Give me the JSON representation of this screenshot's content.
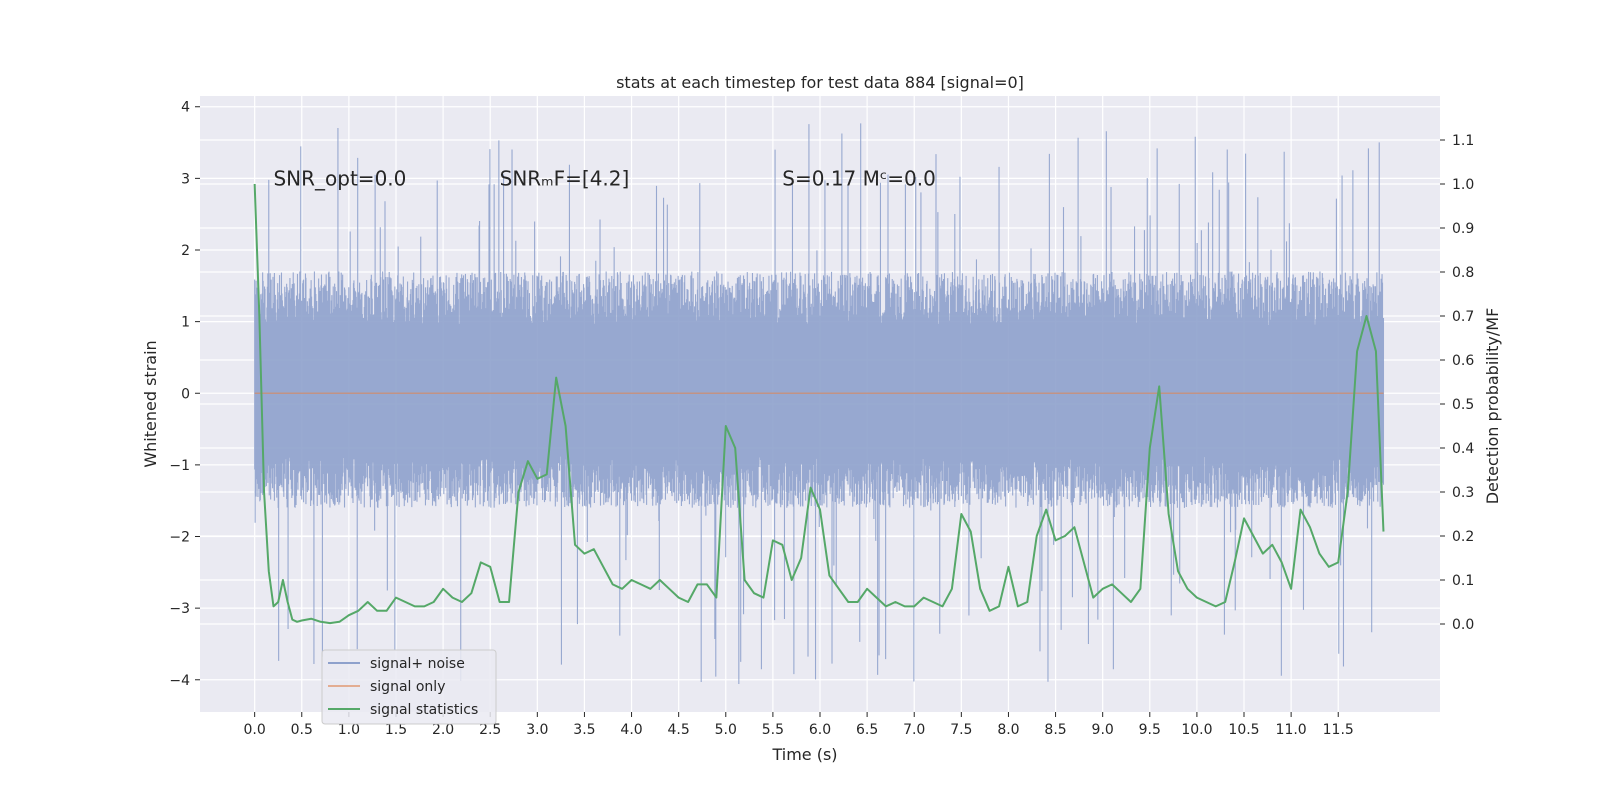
{
  "chart_data": {
    "type": "line",
    "title": "stats at each timestep for test data 884 [signal=0]",
    "xlabel": "Time (s)",
    "ylabel": "Whitened strain",
    "ylabel_right": "Detection probability/MF",
    "xlim": [
      -0.58,
      12.58
    ],
    "ylim": [
      -4.45,
      4.15
    ],
    "ylim_right": [
      -0.2,
      1.2
    ],
    "x_ticks": [
      0.0,
      0.5,
      1.0,
      1.5,
      2.0,
      2.5,
      3.0,
      3.5,
      4.0,
      4.5,
      5.0,
      5.5,
      6.0,
      6.5,
      7.0,
      7.5,
      8.0,
      8.5,
      9.0,
      9.5,
      10.0,
      10.5,
      11.0,
      11.5
    ],
    "x_tick_labels": [
      "0.0",
      "0.5",
      "1.0",
      "1.5",
      "2.0",
      "2.5",
      "3.0",
      "3.5",
      "4.0",
      "4.5",
      "5.0",
      "5.5",
      "6.0",
      "6.5",
      "7.0",
      "7.5",
      "8.0",
      "8.5",
      "9.0",
      "9.5",
      "10.0",
      "10.5",
      "11.0",
      "11.5"
    ],
    "y_ticks": [
      -4,
      -3,
      -2,
      -1,
      0,
      1,
      2,
      3,
      4
    ],
    "y_tick_labels": [
      "−4",
      "−3",
      "−2",
      "−1",
      "0",
      "1",
      "2",
      "3",
      "4"
    ],
    "y_ticks_right": [
      0.0,
      0.1,
      0.2,
      0.3,
      0.4,
      0.5,
      0.6,
      0.7,
      0.8,
      0.9,
      1.0,
      1.1
    ],
    "y_tick_labels_right": [
      "0.0",
      "0.1",
      "0.2",
      "0.3",
      "0.4",
      "0.5",
      "0.6",
      "0.7",
      "0.8",
      "0.9",
      "1.0",
      "1.1"
    ],
    "grid": true,
    "legend_position": "lower-left",
    "annotations": [
      {
        "text": "SNR_opt=0.0",
        "x": 0.2,
        "y": 3.0
      },
      {
        "text": "SNRₘF=[4.2]",
        "x": 2.6,
        "y": 3.0
      },
      {
        "text": "S=0.17   Mᶜ=0.0",
        "x": 5.6,
        "y": 3.0
      }
    ],
    "series": [
      {
        "name": "signal+ noise",
        "color": "#8ea1cc",
        "kind": "noise",
        "x_range": [
          0.0,
          11.98
        ],
        "envelope_low": -1.6,
        "envelope_high": 1.7,
        "extremes_low": -4.1,
        "extremes_high": 3.8,
        "axis": "left"
      },
      {
        "name": "signal only",
        "color": "#dd8452",
        "kind": "line",
        "x": [
          0.0,
          11.98
        ],
        "y": [
          0.0,
          0.0
        ],
        "axis": "left"
      },
      {
        "name": "signal statistics",
        "color": "#55a868",
        "kind": "line",
        "axis": "right",
        "x": [
          0.0,
          0.05,
          0.1,
          0.15,
          0.2,
          0.25,
          0.3,
          0.35,
          0.4,
          0.45,
          0.5,
          0.6,
          0.7,
          0.8,
          0.9,
          1.0,
          1.1,
          1.2,
          1.3,
          1.4,
          1.5,
          1.6,
          1.7,
          1.8,
          1.9,
          2.0,
          2.1,
          2.2,
          2.3,
          2.4,
          2.5,
          2.6,
          2.7,
          2.8,
          2.9,
          3.0,
          3.1,
          3.2,
          3.3,
          3.4,
          3.5,
          3.6,
          3.7,
          3.8,
          3.9,
          4.0,
          4.1,
          4.2,
          4.3,
          4.4,
          4.5,
          4.6,
          4.7,
          4.8,
          4.9,
          5.0,
          5.1,
          5.2,
          5.3,
          5.4,
          5.5,
          5.6,
          5.7,
          5.8,
          5.9,
          6.0,
          6.1,
          6.2,
          6.3,
          6.4,
          6.5,
          6.6,
          6.7,
          6.8,
          6.9,
          7.0,
          7.1,
          7.2,
          7.3,
          7.4,
          7.5,
          7.6,
          7.7,
          7.8,
          7.9,
          8.0,
          8.1,
          8.2,
          8.3,
          8.4,
          8.5,
          8.6,
          8.7,
          8.8,
          8.9,
          9.0,
          9.1,
          9.2,
          9.3,
          9.4,
          9.5,
          9.6,
          9.7,
          9.8,
          9.9,
          10.0,
          10.1,
          10.2,
          10.3,
          10.4,
          10.5,
          10.6,
          10.7,
          10.8,
          10.9,
          11.0,
          11.1,
          11.2,
          11.3,
          11.4,
          11.5,
          11.6,
          11.7,
          11.8,
          11.9,
          11.98
        ],
        "y": [
          1.0,
          0.7,
          0.3,
          0.12,
          0.04,
          0.05,
          0.1,
          0.05,
          0.01,
          0.005,
          0.008,
          0.012,
          0.005,
          0.002,
          0.005,
          0.02,
          0.03,
          0.05,
          0.03,
          0.03,
          0.06,
          0.05,
          0.04,
          0.04,
          0.05,
          0.08,
          0.06,
          0.05,
          0.07,
          0.14,
          0.13,
          0.05,
          0.05,
          0.3,
          0.37,
          0.33,
          0.34,
          0.56,
          0.45,
          0.18,
          0.16,
          0.17,
          0.13,
          0.09,
          0.08,
          0.1,
          0.09,
          0.08,
          0.1,
          0.08,
          0.06,
          0.05,
          0.09,
          0.09,
          0.06,
          0.45,
          0.4,
          0.1,
          0.07,
          0.06,
          0.19,
          0.18,
          0.1,
          0.15,
          0.31,
          0.26,
          0.11,
          0.08,
          0.05,
          0.05,
          0.08,
          0.06,
          0.04,
          0.05,
          0.04,
          0.04,
          0.06,
          0.05,
          0.04,
          0.08,
          0.25,
          0.21,
          0.08,
          0.03,
          0.04,
          0.13,
          0.04,
          0.05,
          0.2,
          0.26,
          0.19,
          0.2,
          0.22,
          0.14,
          0.06,
          0.08,
          0.09,
          0.07,
          0.05,
          0.08,
          0.4,
          0.54,
          0.25,
          0.12,
          0.08,
          0.06,
          0.05,
          0.04,
          0.05,
          0.14,
          0.24,
          0.2,
          0.16,
          0.18,
          0.14,
          0.08,
          0.26,
          0.22,
          0.16,
          0.13,
          0.14,
          0.3,
          0.62,
          0.7,
          0.62,
          0.21
        ]
      }
    ]
  }
}
